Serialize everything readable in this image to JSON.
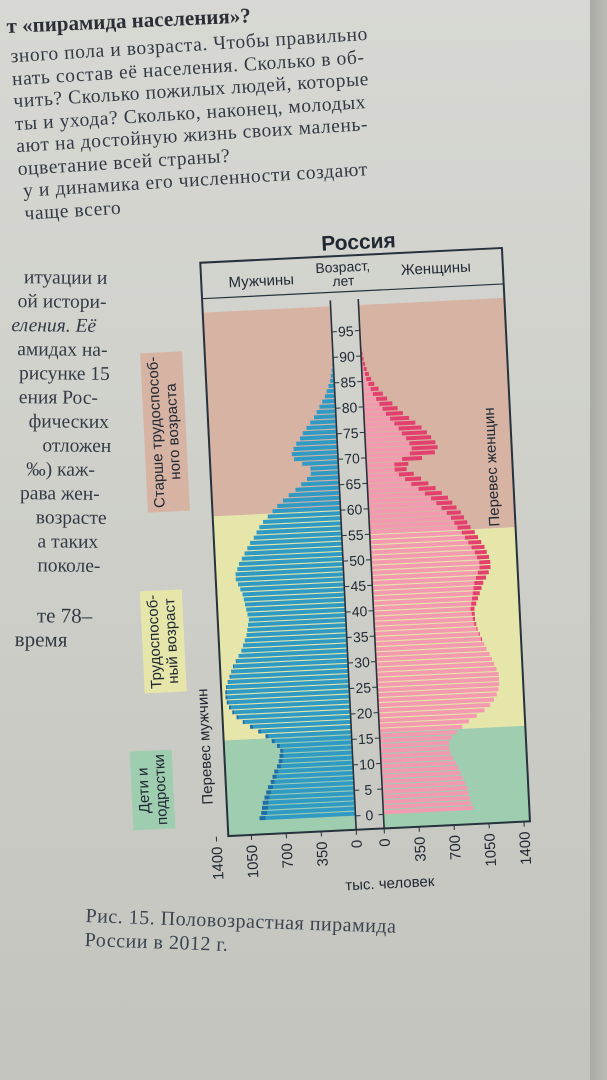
{
  "heading": "т «пирамида населения»?",
  "top_paragraph": [
    "зного пола и возраста. Чтобы правильно",
    "нать состав её населения. Сколько в об-",
    "чить? Сколько пожилых людей, которые",
    "ты и ухода? Сколько, наконец, молодых",
    "ают на достойную жизнь своих малень-",
    "оцветание всей страны?",
    "у и динамика его численности создают",
    "чаще всего"
  ],
  "side_text": [
    "итуации и",
    "ой истори-",
    "еления. Её",
    "амидах на-",
    "рисунке 15",
    "ения Рос-",
    "фических",
    "отложен",
    "‰) каж-",
    "рава жен-",
    "возрасте",
    "а таких",
    "поколе-",
    "те 78–",
    "время"
  ],
  "caption": [
    "Рис. 15. Половозрастная пирамида",
    "России в 2012 г."
  ],
  "colors": {
    "male": "#2f9bc4",
    "male_excess": "#1e6fa8",
    "female": "#f39ab0",
    "female_excess": "#e3406e",
    "band_elderly": "#d7b3a4",
    "band_working": "#e6e6aa",
    "band_children": "#9fcdb0"
  },
  "chart_data": {
    "type": "bar",
    "subtype": "population-pyramid",
    "title": "Россия",
    "male_label": "Мужчины",
    "female_label": "Женщины",
    "age_label": "Возраст, лет",
    "xlabel": "тыс. человек",
    "x_ticks": [
      1400,
      1050,
      700,
      350,
      0
    ],
    "xlim": [
      0,
      1400
    ],
    "age_ticks": [
      0,
      5,
      10,
      15,
      20,
      25,
      30,
      35,
      40,
      45,
      50,
      55,
      60,
      65,
      70,
      75,
      80,
      85,
      90,
      95
    ],
    "age_groups": [
      {
        "label": "Старше трудоспособ-\nного возраста",
        "male_from_age": 60,
        "female_from_age": 55
      },
      {
        "label": "Трудоспособ-\nный возраст",
        "male_from_age": 16,
        "female_from_age": 16
      },
      {
        "label": "Дети и\nподростки",
        "from_age": 0
      }
    ],
    "annotations": {
      "male_excess": "Перевес мужчин",
      "female_excess": "Перевес женщин"
    },
    "ages": [
      0,
      1,
      2,
      3,
      4,
      5,
      6,
      7,
      8,
      9,
      10,
      11,
      12,
      13,
      14,
      15,
      16,
      17,
      18,
      19,
      20,
      21,
      22,
      23,
      24,
      25,
      26,
      27,
      28,
      29,
      30,
      31,
      32,
      33,
      34,
      35,
      36,
      37,
      38,
      39,
      40,
      41,
      42,
      43,
      44,
      45,
      46,
      47,
      48,
      49,
      50,
      51,
      52,
      53,
      54,
      55,
      56,
      57,
      58,
      59,
      60,
      61,
      62,
      63,
      64,
      65,
      66,
      67,
      68,
      69,
      70,
      71,
      72,
      73,
      74,
      75,
      76,
      77,
      78,
      79,
      80,
      81,
      82,
      83,
      84,
      85,
      86,
      87,
      88,
      89,
      90,
      91,
      92,
      93,
      94,
      95,
      96,
      97,
      98,
      99
    ],
    "series": [
      {
        "name": "Мужчины",
        "values": [
          960,
          940,
          930,
          920,
          900,
          880,
          860,
          830,
          810,
          790,
          760,
          740,
          730,
          720,
          750,
          800,
          860,
          930,
          1010,
          1080,
          1140,
          1180,
          1210,
          1230,
          1240,
          1240,
          1230,
          1210,
          1190,
          1170,
          1150,
          1120,
          1090,
          1060,
          1040,
          1020,
          1000,
          990,
          980,
          970,
          980,
          990,
          1000,
          1010,
          1020,
          1040,
          1060,
          1080,
          1080,
          1060,
          1040,
          1010,
          980,
          950,
          920,
          880,
          850,
          820,
          780,
          730,
          680,
          630,
          570,
          510,
          440,
          380,
          320,
          280,
          280,
          360,
          440,
          460,
          440,
          410,
          370,
          340,
          300,
          260,
          220,
          190,
          160,
          130,
          100,
          80,
          60,
          40,
          30,
          20,
          12,
          8,
          6,
          4,
          2,
          2,
          1,
          0,
          0,
          0,
          0,
          0
        ]
      },
      {
        "name": "Женщины",
        "values": [
          900,
          880,
          870,
          860,
          850,
          830,
          810,
          790,
          770,
          750,
          720,
          700,
          690,
          690,
          720,
          770,
          830,
          900,
          980,
          1060,
          1120,
          1160,
          1190,
          1210,
          1220,
          1220,
          1220,
          1200,
          1180,
          1160,
          1140,
          1110,
          1090,
          1070,
          1050,
          1030,
          1020,
          1010,
          1010,
          1010,
          1030,
          1050,
          1070,
          1090,
          1110,
          1140,
          1170,
          1190,
          1190,
          1180,
          1160,
          1140,
          1110,
          1080,
          1050,
          1010,
          980,
          950,
          920,
          880,
          840,
          800,
          740,
          680,
          610,
          540,
          470,
          400,
          420,
          560,
          690,
          720,
          700,
          660,
          620,
          570,
          510,
          450,
          390,
          340,
          290,
          240,
          200,
          160,
          120,
          90,
          70,
          50,
          35,
          24,
          16,
          10,
          6,
          4,
          2,
          0,
          0,
          0,
          0,
          0
        ]
      },
      {
        "name": "Перевес мужчин",
        "values": [
          60,
          60,
          60,
          60,
          50,
          50,
          50,
          40,
          40,
          40,
          40,
          40,
          40,
          30,
          30,
          30,
          30,
          30,
          30,
          20,
          20,
          20,
          20,
          20,
          20,
          20,
          10,
          10,
          10,
          10,
          10,
          10,
          0,
          0,
          0,
          0,
          0,
          0,
          0,
          0,
          0,
          0,
          0,
          0,
          0,
          0,
          0,
          0,
          0,
          0,
          0,
          0,
          0,
          0,
          0,
          0,
          0,
          0,
          0,
          0,
          0,
          0,
          0,
          0,
          0,
          0,
          0,
          0,
          0,
          0,
          0,
          0,
          0,
          0,
          0,
          0,
          0,
          0,
          0,
          0,
          0,
          0,
          0,
          0,
          0,
          0,
          0,
          0,
          0,
          0,
          0,
          0,
          0,
          0,
          0,
          0,
          0,
          0,
          0,
          0
        ]
      },
      {
        "name": "Перевес женщин",
        "values": [
          0,
          0,
          0,
          0,
          0,
          0,
          0,
          0,
          0,
          0,
          0,
          0,
          0,
          0,
          0,
          0,
          0,
          0,
          0,
          0,
          0,
          0,
          0,
          0,
          0,
          0,
          0,
          0,
          0,
          0,
          0,
          0,
          0,
          10,
          10,
          10,
          20,
          20,
          30,
          40,
          50,
          60,
          70,
          80,
          90,
          100,
          110,
          110,
          110,
          120,
          120,
          130,
          130,
          130,
          130,
          130,
          130,
          130,
          140,
          150,
          160,
          170,
          170,
          170,
          170,
          160,
          150,
          120,
          140,
          200,
          250,
          260,
          260,
          250,
          250,
          230,
          210,
          190,
          170,
          150,
          130,
          110,
          100,
          80,
          60,
          50,
          40,
          30,
          23,
          16,
          10,
          6,
          4,
          3,
          1,
          0,
          0,
          0,
          0,
          0
        ]
      }
    ]
  }
}
